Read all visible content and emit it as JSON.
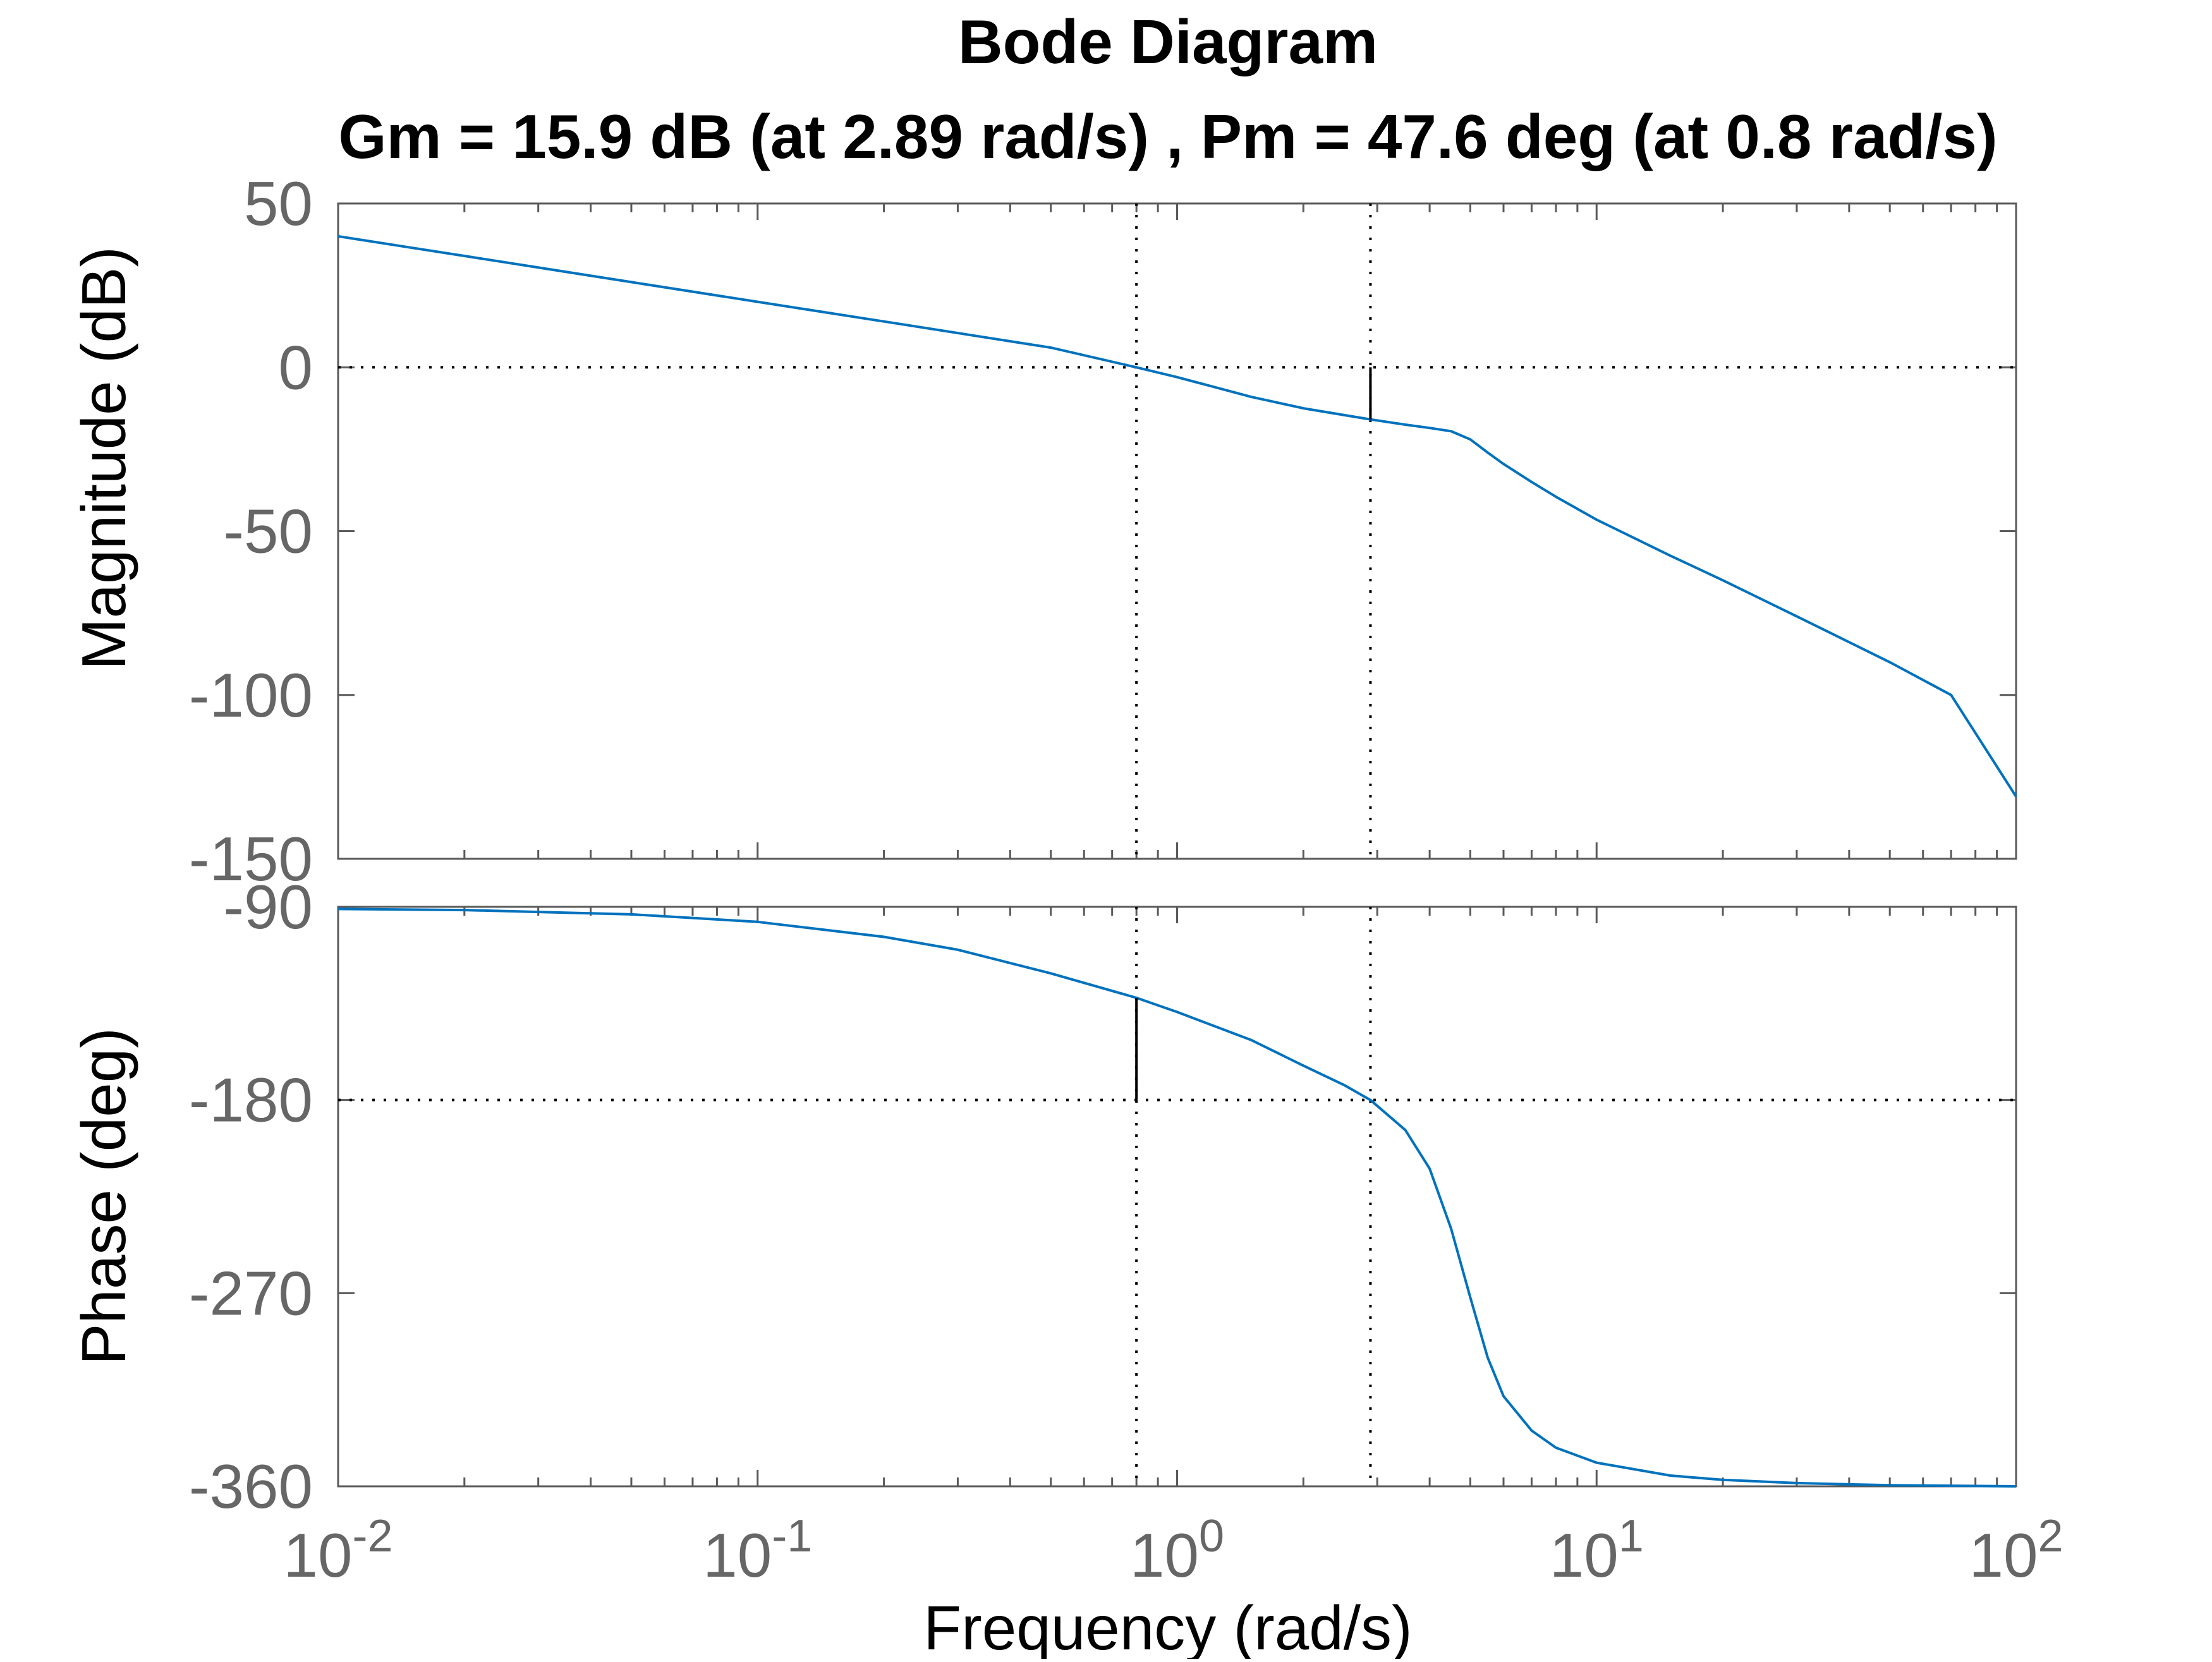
{
  "chart_data": {
    "type": "line",
    "title": "Bode Diagram",
    "subtitle": "Gm = 15.9 dB (at 2.89 rad/s) ,  Pm = 47.6 deg (at 0.8 rad/s)",
    "xlabel": "Frequency  (rad/s)",
    "xscale": "log",
    "xlim": [
      0.01,
      100
    ],
    "x_ticks": [
      {
        "value": 0.01,
        "base": "10",
        "exp": "-2"
      },
      {
        "value": 0.1,
        "base": "10",
        "exp": "-1"
      },
      {
        "value": 1,
        "base": "10",
        "exp": "0"
      },
      {
        "value": 10,
        "base": "10",
        "exp": "1"
      },
      {
        "value": 100,
        "base": "10",
        "exp": "2"
      }
    ],
    "gain_margin": {
      "value_db": 15.9,
      "frequency": 2.89
    },
    "phase_margin": {
      "value_deg": 47.6,
      "frequency": 0.8
    },
    "colors": {
      "series": "#0072BD",
      "axes": "#5a5a5a",
      "tick_label": "#666666",
      "title": "#000000",
      "margin_line": "#000000"
    },
    "panels": [
      {
        "ylabel": "Magnitude (dB)",
        "ylim": [
          -150,
          50
        ],
        "yticks": [
          50,
          0,
          -50,
          -100,
          -150
        ],
        "ytick_labels": [
          "50",
          "0",
          "-50",
          "-100",
          "-150"
        ],
        "reference_value": 0,
        "series": {
          "x": [
            0.01,
            0.02,
            0.05,
            0.1,
            0.2,
            0.5,
            0.8,
            1,
            1.5,
            2,
            2.89,
            3.5,
            4,
            4.5,
            5,
            5.5,
            6,
            7,
            8,
            10,
            15,
            20,
            30,
            50,
            70,
            100
          ],
          "values": [
            40,
            34,
            26,
            20,
            14,
            6,
            0,
            -3,
            -9,
            -12.5,
            -15.9,
            -17.5,
            -18.5,
            -19.5,
            -22,
            -26,
            -29.5,
            -35,
            -39.5,
            -46.5,
            -57.5,
            -65,
            -76,
            -90,
            -100,
            -131
          ]
        }
      },
      {
        "ylabel": "Phase (deg)",
        "ylim": [
          -360,
          -90
        ],
        "yticks": [
          -90,
          -180,
          -270,
          -360
        ],
        "ytick_labels": [
          "-90",
          "-180",
          "-270",
          "-360"
        ],
        "reference_value": -180,
        "series": {
          "x": [
            0.01,
            0.02,
            0.05,
            0.1,
            0.2,
            0.3,
            0.5,
            0.8,
            1,
            1.5,
            2,
            2.5,
            2.89,
            3.5,
            4,
            4.5,
            5,
            5.5,
            6,
            7,
            8,
            10,
            15,
            20,
            30,
            50,
            100
          ],
          "values": [
            -91,
            -91.5,
            -93.5,
            -97,
            -104,
            -110,
            -121,
            -132.4,
            -139,
            -152,
            -164,
            -173,
            -180,
            -194,
            -212,
            -240,
            -272,
            -300,
            -318,
            -334,
            -342,
            -349,
            -355,
            -357,
            -358.5,
            -359.5,
            -360
          ]
        }
      }
    ]
  }
}
